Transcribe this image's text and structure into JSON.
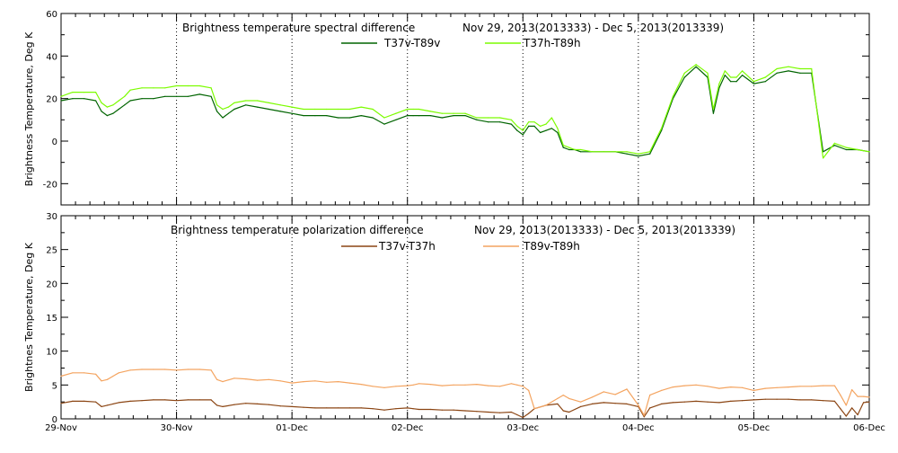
{
  "chart_data": [
    {
      "type": "line",
      "title": "Brightness temperature spectral difference",
      "date_range": "Nov 29, 2013(2013333)  -  Dec  5, 2013(2013339)",
      "ylabel": "Brightness Temperature, Deg K",
      "xlabel": "",
      "xlim": [
        0,
        7
      ],
      "ylim": [
        -30,
        60
      ],
      "yticks": [
        "-20",
        "0",
        "20",
        "40",
        "60"
      ],
      "yticks_values": [
        -20,
        0,
        20,
        40,
        60
      ],
      "grid": "vertical dotted at day boundaries",
      "legend_position": "top-center",
      "x": [
        0.0,
        0.1,
        0.2,
        0.3,
        0.35,
        0.4,
        0.45,
        0.5,
        0.55,
        0.6,
        0.7,
        0.8,
        0.9,
        1.0,
        1.1,
        1.2,
        1.3,
        1.35,
        1.4,
        1.45,
        1.5,
        1.6,
        1.7,
        1.8,
        1.9,
        2.0,
        2.1,
        2.2,
        2.3,
        2.4,
        2.5,
        2.6,
        2.7,
        2.8,
        2.9,
        3.0,
        3.05,
        3.1,
        3.2,
        3.3,
        3.4,
        3.5,
        3.6,
        3.7,
        3.8,
        3.9,
        3.95,
        4.0,
        4.05,
        4.1,
        4.15,
        4.2,
        4.25,
        4.3,
        4.35,
        4.4,
        4.45,
        4.5,
        4.6,
        4.7,
        4.8,
        4.9,
        5.0,
        5.1,
        5.2,
        5.3,
        5.4,
        5.5,
        5.6,
        5.65,
        5.7,
        5.75,
        5.8,
        5.85,
        5.9,
        6.0,
        6.1,
        6.2,
        6.3,
        6.4,
        6.5,
        6.6,
        6.7,
        6.8,
        6.9,
        7.0
      ],
      "series": [
        {
          "name": "T37v-T89v",
          "color": "#006400",
          "values": [
            19,
            20,
            20,
            19,
            14,
            12,
            13,
            15,
            17,
            19,
            20,
            20,
            21,
            21,
            21,
            22,
            21,
            14,
            11,
            13,
            15,
            17,
            16,
            15,
            14,
            13,
            12,
            12,
            12,
            11,
            11,
            12,
            11,
            8,
            10,
            12,
            12,
            12,
            12,
            11,
            12,
            12,
            10,
            9,
            9,
            8,
            5,
            3,
            7,
            7,
            4,
            5,
            6,
            4,
            -3,
            -4,
            -4,
            -5,
            -5,
            -5,
            -5,
            -6,
            -7,
            -6,
            5,
            20,
            30,
            35,
            30,
            13,
            25,
            31,
            28,
            28,
            31,
            27,
            28,
            32,
            33,
            32,
            32,
            -5,
            -2,
            -4,
            -4,
            -5
          ]
        },
        {
          "name": "T37h-T89h",
          "color": "#7CFC00",
          "values": [
            21,
            23,
            23,
            23,
            18,
            16,
            17,
            19,
            21,
            24,
            25,
            25,
            25,
            26,
            26,
            26,
            25,
            17,
            15,
            16,
            18,
            19,
            19,
            18,
            17,
            16,
            15,
            15,
            15,
            15,
            15,
            16,
            15,
            11,
            13,
            15,
            15,
            15,
            14,
            13,
            13,
            13,
            11,
            11,
            11,
            10,
            7,
            5,
            9,
            9,
            7,
            8,
            11,
            6,
            -2,
            -3,
            -4,
            -4,
            -5,
            -5,
            -5,
            -5,
            -6,
            -5,
            6,
            21,
            32,
            36,
            32,
            15,
            27,
            33,
            30,
            30,
            33,
            28,
            30,
            34,
            35,
            34,
            34,
            -8,
            -1,
            -3,
            -4,
            -5
          ]
        }
      ]
    },
    {
      "type": "line",
      "title": "Brightness temperature polarization difference",
      "date_range": "Nov 29, 2013(2013333)  -  Dec  5, 2013(2013339)",
      "ylabel": "Brightnes Temperature, Deg K",
      "xlabel": "",
      "xlim": [
        0,
        7
      ],
      "ylim": [
        0,
        30
      ],
      "yticks": [
        "0",
        "5",
        "10",
        "15",
        "20",
        "25",
        "30"
      ],
      "yticks_values": [
        0,
        5,
        10,
        15,
        20,
        25,
        30
      ],
      "xticks": [
        "29-Nov",
        "30-Nov",
        "01-Dec",
        "02-Dec",
        "03-Dec",
        "04-Dec",
        "05-Dec",
        "06-Dec"
      ],
      "xticks_values": [
        0,
        1,
        2,
        3,
        4,
        5,
        6,
        7
      ],
      "grid": "vertical dotted at day boundaries",
      "legend_position": "top-center",
      "x": [
        0.0,
        0.1,
        0.2,
        0.3,
        0.35,
        0.4,
        0.45,
        0.5,
        0.6,
        0.7,
        0.8,
        0.9,
        1.0,
        1.1,
        1.2,
        1.3,
        1.35,
        1.4,
        1.5,
        1.6,
        1.7,
        1.8,
        1.9,
        2.0,
        2.1,
        2.2,
        2.3,
        2.4,
        2.5,
        2.6,
        2.7,
        2.8,
        2.9,
        3.0,
        3.05,
        3.1,
        3.2,
        3.3,
        3.4,
        3.5,
        3.6,
        3.7,
        3.8,
        3.9,
        3.95,
        4.0,
        4.05,
        4.1,
        4.2,
        4.3,
        4.35,
        4.4,
        4.5,
        4.6,
        4.7,
        4.8,
        4.9,
        5.0,
        5.05,
        5.1,
        5.2,
        5.3,
        5.4,
        5.5,
        5.6,
        5.7,
        5.8,
        5.9,
        6.0,
        6.1,
        6.2,
        6.3,
        6.4,
        6.5,
        6.6,
        6.7,
        6.75,
        6.8,
        6.85,
        6.9,
        6.95,
        7.0
      ],
      "series": [
        {
          "name": "T37v-T37h",
          "color": "#8B4513",
          "values": [
            2.3,
            2.6,
            2.6,
            2.5,
            1.8,
            2.0,
            2.2,
            2.4,
            2.6,
            2.7,
            2.8,
            2.8,
            2.7,
            2.8,
            2.8,
            2.8,
            2.0,
            1.8,
            2.1,
            2.3,
            2.2,
            2.1,
            1.9,
            1.8,
            1.7,
            1.6,
            1.6,
            1.6,
            1.6,
            1.6,
            1.5,
            1.3,
            1.5,
            1.6,
            1.5,
            1.4,
            1.4,
            1.3,
            1.3,
            1.2,
            1.1,
            1.0,
            0.9,
            1.0,
            0.6,
            0.2,
            0.8,
            1.5,
            2.0,
            2.2,
            1.2,
            1.0,
            1.8,
            2.2,
            2.4,
            2.3,
            2.2,
            1.8,
            0.3,
            1.6,
            2.2,
            2.4,
            2.5,
            2.6,
            2.5,
            2.4,
            2.6,
            2.7,
            2.8,
            2.9,
            2.9,
            2.9,
            2.8,
            2.8,
            2.7,
            2.6,
            1.5,
            0.4,
            1.6,
            0.6,
            2.4,
            2.5
          ]
        },
        {
          "name": "T89v-T89h",
          "color": "#F4A460",
          "values": [
            6.3,
            6.8,
            6.8,
            6.6,
            5.6,
            5.8,
            6.3,
            6.8,
            7.2,
            7.3,
            7.3,
            7.3,
            7.2,
            7.3,
            7.3,
            7.2,
            5.8,
            5.5,
            6.0,
            5.9,
            5.7,
            5.8,
            5.6,
            5.3,
            5.5,
            5.6,
            5.4,
            5.5,
            5.3,
            5.1,
            4.8,
            4.6,
            4.8,
            4.9,
            5.0,
            5.2,
            5.1,
            4.9,
            5.0,
            5.0,
            5.1,
            4.9,
            4.8,
            5.2,
            5.0,
            4.8,
            4.2,
            1.5,
            2.0,
            3.0,
            3.5,
            3.0,
            2.5,
            3.2,
            4.0,
            3.6,
            4.4,
            2.0,
            0.5,
            3.5,
            4.2,
            4.7,
            4.9,
            5.0,
            4.8,
            4.5,
            4.7,
            4.6,
            4.2,
            4.5,
            4.6,
            4.7,
            4.8,
            4.8,
            4.9,
            4.9,
            3.5,
            2.0,
            4.3,
            3.3,
            3.3,
            3.2
          ]
        }
      ]
    }
  ]
}
